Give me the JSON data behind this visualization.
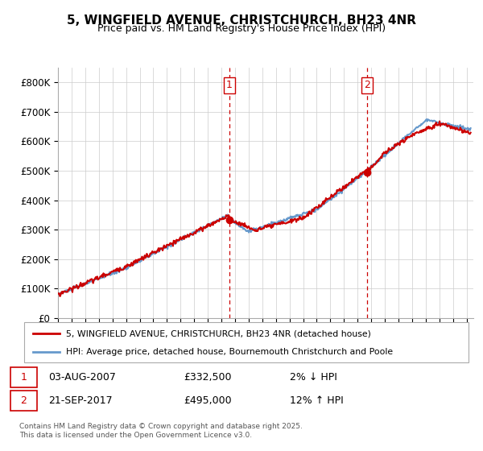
{
  "title": "5, WINGFIELD AVENUE, CHRISTCHURCH, BH23 4NR",
  "subtitle": "Price paid vs. HM Land Registry's House Price Index (HPI)",
  "ylim": [
    0,
    850000
  ],
  "yticks": [
    0,
    100000,
    200000,
    300000,
    400000,
    500000,
    600000,
    700000,
    800000
  ],
  "ytick_labels": [
    "£0",
    "£100K",
    "£200K",
    "£300K",
    "£400K",
    "£500K",
    "£600K",
    "£700K",
    "£800K"
  ],
  "xlim_start": 1995.0,
  "xlim_end": 2025.5,
  "marker1_x": 2007.58,
  "marker1_y": 332500,
  "marker2_x": 2017.72,
  "marker2_y": 495000,
  "legend_line1": "5, WINGFIELD AVENUE, CHRISTCHURCH, BH23 4NR (detached house)",
  "legend_line2": "HPI: Average price, detached house, Bournemouth Christchurch and Poole",
  "table_row1_num": "1",
  "table_row1_date": "03-AUG-2007",
  "table_row1_price": "£332,500",
  "table_row1_hpi": "2% ↓ HPI",
  "table_row2_num": "2",
  "table_row2_date": "21-SEP-2017",
  "table_row2_price": "£495,000",
  "table_row2_hpi": "12% ↑ HPI",
  "footer": "Contains HM Land Registry data © Crown copyright and database right 2025.\nThis data is licensed under the Open Government Licence v3.0.",
  "line_color_red": "#cc0000",
  "line_color_blue": "#6699cc",
  "grid_color": "#cccccc",
  "bg_color": "#ffffff"
}
